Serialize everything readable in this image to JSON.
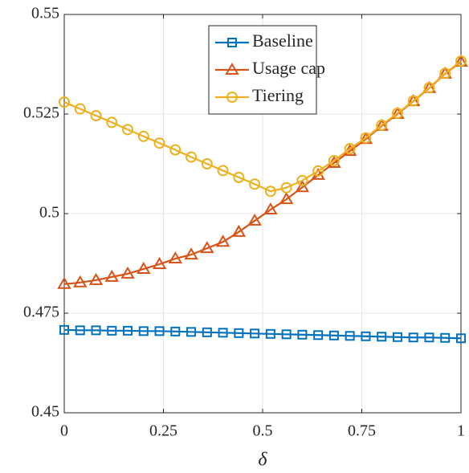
{
  "chart_data": {
    "type": "line",
    "x_label": "δ",
    "x": [
      0,
      0.04,
      0.08,
      0.12,
      0.16,
      0.2,
      0.24,
      0.28,
      0.32,
      0.36,
      0.4,
      0.44,
      0.48,
      0.52,
      0.56,
      0.6,
      0.64,
      0.68,
      0.72,
      0.76,
      0.8,
      0.84,
      0.88,
      0.92,
      0.96,
      1
    ],
    "series": [
      {
        "name": "Baseline",
        "color": "#0072bd",
        "marker": "square",
        "values": [
          0.4708,
          0.4707,
          0.4707,
          0.4706,
          0.4706,
          0.4705,
          0.4705,
          0.4704,
          0.4703,
          0.4702,
          0.4701,
          0.47,
          0.4699,
          0.4698,
          0.4697,
          0.4696,
          0.4695,
          0.4694,
          0.4693,
          0.4692,
          0.4691,
          0.469,
          0.4689,
          0.4689,
          0.4688,
          0.4687
        ]
      },
      {
        "name": "Usage cap",
        "color": "#d95319",
        "marker": "triangle",
        "values": [
          0.4823,
          0.4827,
          0.4833,
          0.4841,
          0.4849,
          0.4861,
          0.4873,
          0.4887,
          0.4897,
          0.4913,
          0.4929,
          0.4954,
          0.4982,
          0.501,
          0.5036,
          0.5066,
          0.5097,
          0.5127,
          0.5157,
          0.5187,
          0.522,
          0.525,
          0.5282,
          0.5315,
          0.5351,
          0.5381
        ]
      },
      {
        "name": "Tiering",
        "color": "#edb120",
        "marker": "circle",
        "values": [
          0.528,
          0.5263,
          0.5246,
          0.5229,
          0.5211,
          0.5194,
          0.5177,
          0.516,
          0.5142,
          0.5125,
          0.5108,
          0.5091,
          0.5074,
          0.5056,
          0.5065,
          0.5083,
          0.5107,
          0.5133,
          0.5163,
          0.519,
          0.5222,
          0.5252,
          0.5283,
          0.5316,
          0.5352,
          0.5383
        ]
      }
    ],
    "xlim": [
      0,
      1
    ],
    "xticks": [
      0,
      0.25,
      0.5,
      0.75,
      1
    ],
    "ylim": [
      0.45,
      0.55
    ],
    "yticks": [
      0.45,
      0.475,
      0.5,
      0.525,
      0.55
    ],
    "grid": true,
    "legend": "upper-center"
  }
}
